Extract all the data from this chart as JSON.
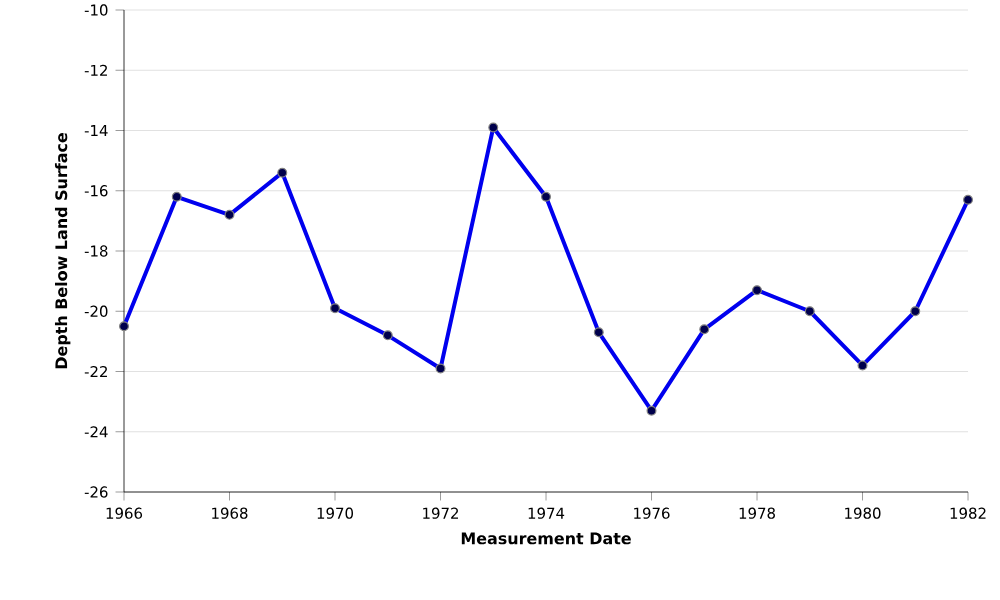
{
  "chart_data": {
    "type": "line",
    "xlabel": "Measurement Date",
    "ylabel": "Depth Below Land Surface",
    "x": [
      1966,
      1967,
      1968,
      1969,
      1970,
      1971,
      1972,
      1973,
      1974,
      1975,
      1976,
      1977,
      1978,
      1979,
      1980,
      1981,
      1982
    ],
    "series": [
      {
        "color": "#0000ee",
        "values": [
          -20.5,
          -16.2,
          -16.8,
          -15.4,
          -19.9,
          -20.8,
          -21.9,
          -13.9,
          -16.2,
          -20.7,
          -23.3,
          -20.6,
          -19.3,
          -20.0,
          -21.8,
          -20.0,
          -16.3
        ]
      }
    ],
    "xlim": [
      1966,
      1982
    ],
    "xticks": [
      1966,
      1968,
      1970,
      1972,
      1974,
      1976,
      1978,
      1980,
      1982
    ],
    "ylim": [
      -26,
      -10
    ],
    "yticks": [
      -26,
      -24,
      -22,
      -20,
      -18,
      -16,
      -14,
      -12,
      -10
    ],
    "grid": "y",
    "marker": "circle",
    "line_style": "solid"
  }
}
